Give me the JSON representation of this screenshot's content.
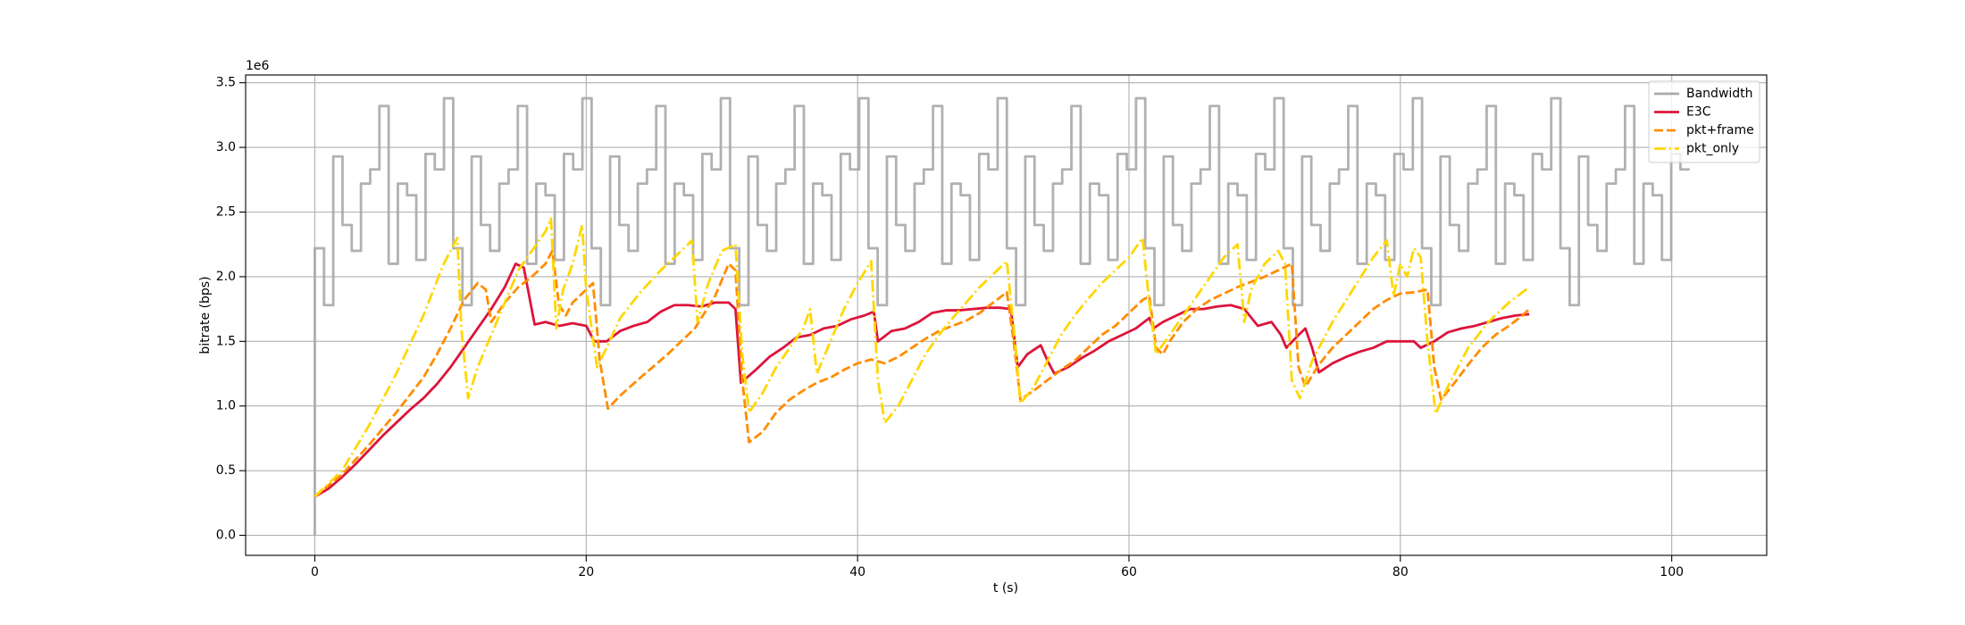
{
  "chart_data": {
    "type": "line",
    "xlabel": "t (s)",
    "ylabel": "bitrate (bps)",
    "offset_text": "1e6",
    "xlim": [
      -5.1,
      107.0
    ],
    "ylim": [
      -0.155,
      3.56
    ],
    "xticks": [
      0,
      20,
      40,
      60,
      80,
      100
    ],
    "yticks": [
      {
        "value": 0,
        "label": "0.0"
      },
      0.5,
      {
        "value": 1,
        "label": "1.0"
      },
      1.5,
      {
        "value": 2,
        "label": "2.0"
      },
      2.5,
      {
        "value": 3,
        "label": "3.0"
      },
      3.5
    ],
    "grid": true,
    "legend": "upper right",
    "series": [
      {
        "name": "Bandwidth",
        "color": "#a9a9a9",
        "linestyle": "solid",
        "drawstyle": "steps-post",
        "x": [
          0,
          0,
          0.68,
          1.36,
          2.04,
          2.72,
          3.4,
          4.08,
          4.76,
          5.44,
          6.12,
          6.8,
          7.48,
          8.16,
          8.84,
          9.52,
          10.2,
          10.88,
          11.56,
          12.24,
          12.92,
          13.6,
          14.28,
          14.96,
          15.64,
          16.32,
          17,
          17.68,
          18.36,
          19.04,
          19.72,
          20.4,
          21.08,
          21.76,
          22.44,
          23.12,
          23.8,
          24.48,
          25.16,
          25.84,
          26.52,
          27.2,
          27.88,
          28.56,
          29.24,
          29.92,
          30.6,
          31.28,
          31.96,
          32.64,
          33.32,
          34,
          34.68,
          35.36,
          36.04,
          36.72,
          37.4,
          38.08,
          38.76,
          39.44,
          40.12,
          40.8,
          41.48,
          42.16,
          42.84,
          43.52,
          44.2,
          44.88,
          45.56,
          46.24,
          46.92,
          47.6,
          48.28,
          48.96,
          49.64,
          50.32,
          51,
          51.68,
          52.36,
          53.04,
          53.72,
          54.4,
          55.08,
          55.76,
          56.44,
          57.12,
          57.8,
          58.48,
          59.16,
          59.84,
          60.52,
          61.2,
          61.88,
          62.56,
          63.24,
          63.92,
          64.6,
          65.28,
          65.96,
          66.64,
          67.32,
          68,
          68.68,
          69.36,
          70.04,
          70.72,
          71.4,
          72.08,
          72.76,
          73.44,
          74.12,
          74.8,
          75.48,
          76.16,
          76.84,
          77.52,
          78.2,
          78.88,
          79.56,
          80.24,
          80.92,
          81.6,
          82.28,
          82.96,
          83.64,
          84.32,
          85,
          85.68,
          86.36,
          87.04,
          87.72,
          88.4,
          89.08,
          89.76,
          90.44,
          91.12,
          91.8,
          92.48,
          93.16,
          93.84,
          94.52,
          95.2,
          95.88,
          96.56,
          97.24,
          97.92,
          98.6,
          99.28,
          99.96,
          100.64,
          101.32
        ],
        "values": [
          0,
          2.22,
          1.78,
          2.93,
          2.4,
          2.2,
          2.72,
          2.83,
          3.32,
          2.1,
          2.72,
          2.63,
          2.13,
          2.95,
          2.83,
          3.38,
          2.22,
          1.78,
          2.93,
          2.4,
          2.2,
          2.72,
          2.83,
          3.32,
          2.1,
          2.72,
          2.63,
          2.13,
          2.95,
          2.83,
          3.38,
          2.22,
          1.78,
          2.93,
          2.4,
          2.2,
          2.72,
          2.83,
          3.32,
          2.1,
          2.72,
          2.63,
          2.13,
          2.95,
          2.83,
          3.38,
          2.22,
          1.78,
          2.93,
          2.4,
          2.2,
          2.72,
          2.83,
          3.32,
          2.1,
          2.72,
          2.63,
          2.13,
          2.95,
          2.83,
          3.38,
          2.22,
          1.78,
          2.93,
          2.4,
          2.2,
          2.72,
          2.83,
          3.32,
          2.1,
          2.72,
          2.63,
          2.13,
          2.95,
          2.83,
          3.38,
          2.22,
          1.78,
          2.93,
          2.4,
          2.2,
          2.72,
          2.83,
          3.32,
          2.1,
          2.72,
          2.63,
          2.13,
          2.95,
          2.83,
          3.38,
          2.22,
          1.78,
          2.93,
          2.4,
          2.2,
          2.72,
          2.83,
          3.32,
          2.1,
          2.72,
          2.63,
          2.13,
          2.95,
          2.83,
          3.38,
          2.22,
          1.78,
          2.93,
          2.4,
          2.2,
          2.72,
          2.83,
          3.32,
          2.1,
          2.72,
          2.63,
          2.13,
          2.95,
          2.83,
          3.38,
          2.22,
          1.78,
          2.93,
          2.4,
          2.2,
          2.72,
          2.83,
          3.32,
          2.1,
          2.72,
          2.63,
          2.13,
          2.95,
          2.83,
          3.38,
          2.22,
          1.78,
          2.93,
          2.4,
          2.2,
          2.72,
          2.83,
          3.32,
          2.1,
          2.72,
          2.63,
          2.13,
          2.95,
          2.83,
          2.83
        ]
      },
      {
        "name": "E3C",
        "color": "#dc143c",
        "linestyle": "solid",
        "x": [
          0,
          1,
          2,
          3,
          4,
          5,
          6,
          7,
          8,
          9,
          10,
          11,
          12,
          13,
          14,
          14.8,
          15.4,
          15.8,
          16.2,
          17,
          18,
          19,
          20,
          20.6,
          21.5,
          22.5,
          23.5,
          24.5,
          25.5,
          26.5,
          27.5,
          28.5,
          29.5,
          30.5,
          31,
          31.4,
          32.5,
          33.5,
          34.5,
          35.5,
          36.5,
          37.5,
          38.5,
          39.5,
          40.5,
          41.2,
          41.5,
          42.5,
          43.5,
          44.5,
          45.5,
          46.5,
          47.5,
          48.5,
          49.5,
          50.5,
          51.3,
          51.8,
          52.5,
          53.5,
          54,
          54.5,
          55.5,
          56.5,
          57.5,
          58.5,
          59.5,
          60.5,
          61.5,
          61.8,
          62.5,
          63.5,
          64.5,
          65.5,
          66.5,
          67.5,
          68.5,
          69.5,
          70.5,
          71.2,
          71.6,
          72.5,
          73,
          73.5,
          74,
          75,
          76,
          77,
          78,
          79,
          80,
          81,
          81.5,
          82.5,
          83.5,
          84.5,
          85.5,
          86.5,
          87.5,
          88.5,
          89.5
        ],
        "values": [
          0.3,
          0.36,
          0.45,
          0.55,
          0.66,
          0.77,
          0.87,
          0.97,
          1.06,
          1.17,
          1.3,
          1.45,
          1.6,
          1.75,
          1.92,
          2.1,
          2.07,
          1.85,
          1.63,
          1.65,
          1.62,
          1.64,
          1.62,
          1.5,
          1.5,
          1.58,
          1.62,
          1.65,
          1.73,
          1.78,
          1.78,
          1.77,
          1.8,
          1.8,
          1.75,
          1.18,
          1.28,
          1.38,
          1.45,
          1.53,
          1.55,
          1.6,
          1.62,
          1.67,
          1.7,
          1.73,
          1.5,
          1.58,
          1.6,
          1.65,
          1.72,
          1.74,
          1.74,
          1.75,
          1.76,
          1.76,
          1.75,
          1.3,
          1.4,
          1.47,
          1.35,
          1.25,
          1.3,
          1.37,
          1.43,
          1.5,
          1.55,
          1.6,
          1.68,
          1.6,
          1.65,
          1.7,
          1.75,
          1.75,
          1.77,
          1.78,
          1.75,
          1.62,
          1.65,
          1.55,
          1.45,
          1.55,
          1.6,
          1.45,
          1.26,
          1.33,
          1.38,
          1.42,
          1.45,
          1.5,
          1.5,
          1.5,
          1.45,
          1.5,
          1.57,
          1.6,
          1.62,
          1.65,
          1.68,
          1.7,
          1.71
        ]
      },
      {
        "name": "pkt+frame",
        "color": "#ff8c00",
        "linestyle": "dashed",
        "x": [
          0,
          2,
          4,
          6,
          8,
          9,
          10,
          11,
          12,
          12.6,
          13,
          14,
          15,
          16,
          17,
          17.5,
          18,
          18.5,
          19,
          20,
          20.5,
          21,
          21.6,
          22.5,
          24,
          26,
          28,
          29.5,
          30.5,
          31,
          31.5,
          32,
          33,
          34,
          35,
          36,
          37,
          38,
          39,
          40,
          41,
          42,
          43,
          44,
          45,
          46,
          47,
          48,
          49,
          50,
          51,
          51.5,
          52,
          53,
          54,
          55,
          56,
          57,
          58,
          59,
          60,
          61,
          61.5,
          62,
          62.5,
          63,
          64,
          65,
          66,
          67,
          68,
          69,
          70,
          71,
          72,
          72.5,
          73,
          74,
          75,
          76,
          77,
          78,
          79,
          80,
          81,
          82,
          82.5,
          83,
          84,
          85,
          86,
          87,
          88,
          89,
          89.6
        ],
        "values": [
          0.3,
          0.47,
          0.7,
          0.95,
          1.22,
          1.4,
          1.6,
          1.82,
          1.95,
          1.9,
          1.65,
          1.8,
          1.92,
          2.0,
          2.1,
          2.2,
          1.78,
          1.7,
          1.8,
          1.9,
          1.95,
          1.35,
          0.98,
          1.08,
          1.22,
          1.4,
          1.6,
          1.85,
          2.1,
          2.05,
          1.2,
          0.72,
          0.8,
          0.95,
          1.05,
          1.12,
          1.18,
          1.22,
          1.28,
          1.33,
          1.36,
          1.33,
          1.38,
          1.45,
          1.52,
          1.58,
          1.62,
          1.66,
          1.72,
          1.8,
          1.88,
          1.5,
          1.05,
          1.12,
          1.2,
          1.28,
          1.35,
          1.45,
          1.55,
          1.62,
          1.72,
          1.82,
          1.85,
          1.45,
          1.4,
          1.5,
          1.65,
          1.75,
          1.82,
          1.87,
          1.92,
          1.96,
          2.0,
          2.05,
          2.1,
          1.3,
          1.15,
          1.32,
          1.45,
          1.55,
          1.65,
          1.75,
          1.82,
          1.87,
          1.88,
          1.9,
          1.3,
          1.05,
          1.18,
          1.32,
          1.45,
          1.55,
          1.62,
          1.7,
          1.76
        ]
      },
      {
        "name": "pkt_only",
        "color": "#ffd700",
        "linestyle": "dashdot",
        "x": [
          0,
          2,
          4,
          6,
          8,
          9.5,
          10.5,
          10.8,
          11.3,
          12,
          13,
          14,
          15,
          16,
          17,
          17.4,
          17.8,
          18.3,
          19,
          19.7,
          20,
          20.8,
          21.5,
          22.5,
          24,
          25.5,
          27,
          27.8,
          28.2,
          29,
          30,
          31,
          31.5,
          32,
          33,
          34,
          35,
          36,
          36.5,
          37,
          38,
          39,
          40,
          41,
          41.5,
          42,
          43,
          44,
          45,
          46,
          47,
          48,
          49,
          50,
          51,
          51.6,
          52,
          53,
          54,
          55,
          56,
          57,
          58,
          59,
          60,
          61,
          61.5,
          62,
          63,
          64,
          65,
          66,
          67,
          68,
          68.5,
          69,
          70,
          71,
          71.5,
          72,
          72.6,
          73.5,
          75,
          76.5,
          78,
          79,
          79.5,
          80,
          80.5,
          81,
          81.5,
          82,
          82.6,
          83.5,
          85,
          86.5,
          88,
          89.5
        ],
        "values": [
          0.3,
          0.5,
          0.85,
          1.25,
          1.7,
          2.1,
          2.3,
          1.6,
          1.06,
          1.3,
          1.55,
          1.8,
          2.05,
          2.2,
          2.35,
          2.45,
          1.6,
          1.9,
          2.1,
          2.4,
          1.9,
          1.3,
          1.45,
          1.68,
          1.88,
          2.05,
          2.2,
          2.28,
          1.65,
          1.95,
          2.2,
          2.25,
          1.4,
          0.95,
          1.1,
          1.3,
          1.45,
          1.6,
          1.75,
          1.25,
          1.5,
          1.75,
          1.95,
          2.12,
          1.2,
          0.87,
          1.0,
          1.2,
          1.4,
          1.55,
          1.68,
          1.8,
          1.92,
          2.02,
          2.12,
          1.5,
          1.02,
          1.15,
          1.35,
          1.55,
          1.7,
          1.83,
          1.95,
          2.05,
          2.15,
          2.3,
          1.8,
          1.4,
          1.55,
          1.7,
          1.85,
          2.0,
          2.15,
          2.25,
          1.65,
          1.9,
          2.1,
          2.2,
          2.1,
          1.2,
          1.06,
          1.35,
          1.65,
          1.9,
          2.15,
          2.28,
          1.85,
          2.1,
          2.0,
          2.22,
          2.15,
          1.5,
          0.94,
          1.15,
          1.45,
          1.65,
          1.8,
          1.92
        ]
      }
    ]
  }
}
